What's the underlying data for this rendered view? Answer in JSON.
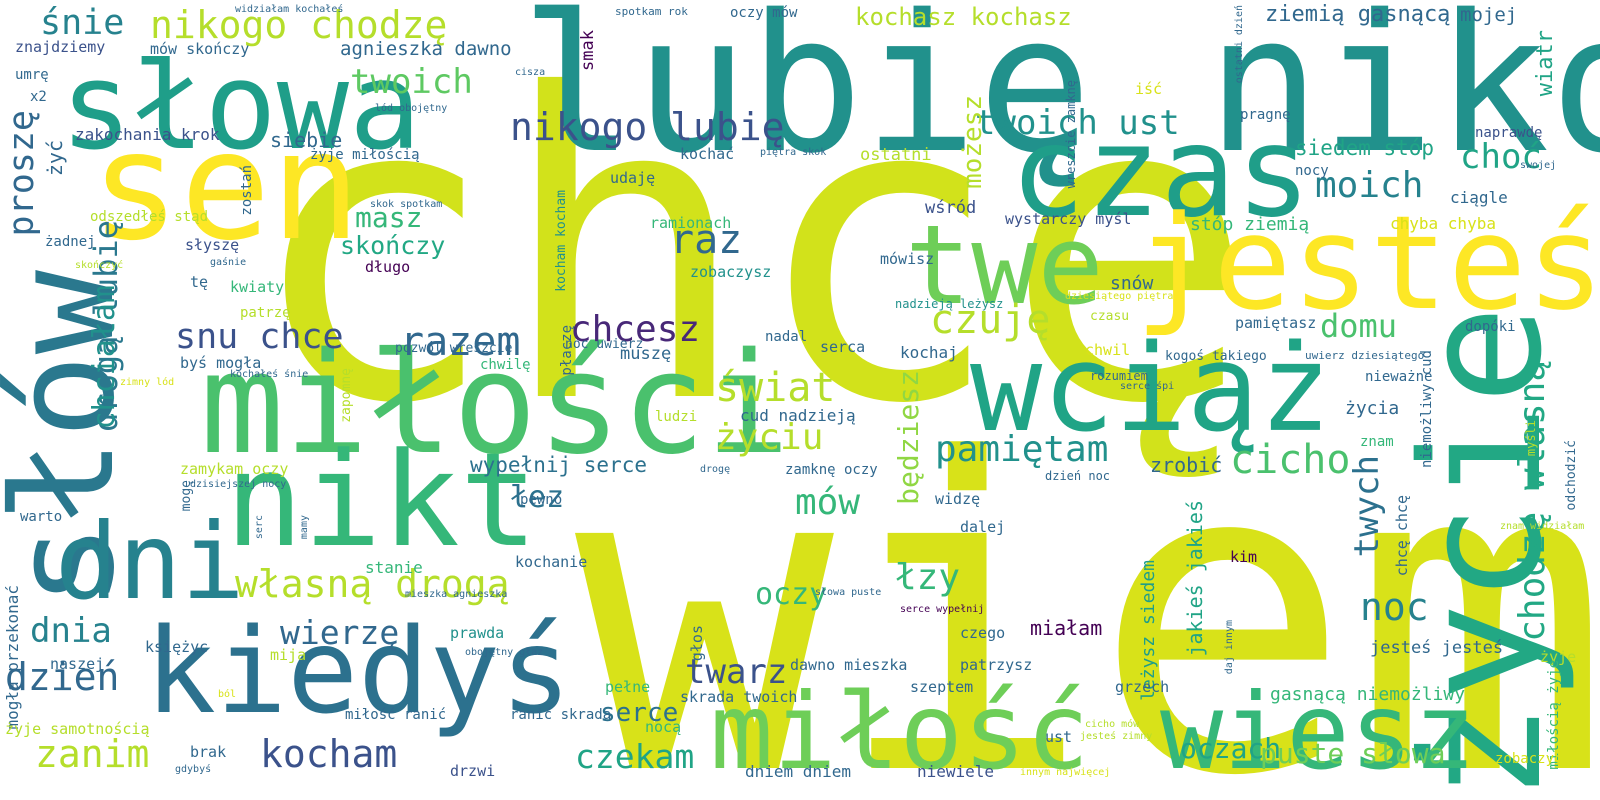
{
  "cloud": {
    "palette": [
      "#440154",
      "#482878",
      "#3e4989",
      "#31688e",
      "#26828e",
      "#1f9e89",
      "#35b779",
      "#6ece58",
      "#b5de2b",
      "#fde725"
    ],
    "words": [
      {
        "text": "chcę",
        "color": "#d2e21b"
      },
      {
        "text": "wiem",
        "color": "#d8e219"
      },
      {
        "text": "lubię nikogo",
        "color": "#21918c"
      },
      {
        "text": "słowa",
        "color": "#1f9e89"
      },
      {
        "text": "sen",
        "color": "#fde725"
      },
      {
        "text": "czas",
        "color": "#1f9e89"
      },
      {
        "text": "jesteś",
        "color": "#fde725"
      },
      {
        "text": "twe",
        "color": "#6ece58"
      },
      {
        "text": "miłości",
        "color": "#4ac16d"
      },
      {
        "text": "wciąż",
        "color": "#20a486"
      },
      {
        "text": "życie",
        "color": "#22a884"
      },
      {
        "text": "słów",
        "color": "#2a788e"
      },
      {
        "text": "nikt",
        "color": "#35b779"
      },
      {
        "text": "dni",
        "color": "#26828e"
      },
      {
        "text": "kiedyś",
        "color": "#2c718e"
      },
      {
        "text": "miłość",
        "color": "#6ece58"
      },
      {
        "text": "wiesz",
        "color": "#35b779"
      },
      {
        "text": "śnie",
        "color": "#26828e"
      },
      {
        "text": "nikogo chodzę",
        "color": "#b5de2b"
      },
      {
        "text": "twoich",
        "color": "#5ec962"
      },
      {
        "text": "nikogo lubię",
        "color": "#3b528b"
      },
      {
        "text": "twoich ust",
        "color": "#21918c"
      },
      {
        "text": "moich",
        "color": "#26828e"
      },
      {
        "text": "choć",
        "color": "#20a486"
      },
      {
        "text": "kochasz kochasz",
        "color": "#b5de2b"
      },
      {
        "text": "ziemią gasnącą",
        "color": "#31688e"
      },
      {
        "text": "mojej",
        "color": "#31688e"
      },
      {
        "text": "siedem stóp",
        "color": "#20a486"
      },
      {
        "text": "proszę",
        "color": "#31688e"
      },
      {
        "text": "drogą lubię",
        "color": "#2a788e"
      },
      {
        "text": "chciałam",
        "color": "#21918c"
      },
      {
        "text": "masz",
        "color": "#35b779"
      },
      {
        "text": "skończy",
        "color": "#22a884"
      },
      {
        "text": "raz",
        "color": "#31688e"
      },
      {
        "text": "możesz",
        "color": "#b5de2b"
      },
      {
        "text": "czuję",
        "color": "#b5de2b"
      },
      {
        "text": "snu chce",
        "color": "#3b528b"
      },
      {
        "text": "razem",
        "color": "#31688e"
      },
      {
        "text": "chcesz",
        "color": "#482878"
      },
      {
        "text": "domu",
        "color": "#4ac16d"
      },
      {
        "text": "świat",
        "color": "#b5de2b"
      },
      {
        "text": "pamiętam",
        "color": "#21918c"
      },
      {
        "text": "cicho",
        "color": "#4ac16d"
      },
      {
        "text": "życiu",
        "color": "#b5de2b"
      },
      {
        "text": "będziesz",
        "color": "#90d743"
      },
      {
        "text": "chodzę własną",
        "color": "#22a884"
      },
      {
        "text": "noc",
        "color": "#26828e"
      },
      {
        "text": "twych",
        "color": "#2c718e"
      },
      {
        "text": "własną drogą",
        "color": "#b5de2b"
      },
      {
        "text": "dnia",
        "color": "#26828e"
      },
      {
        "text": "dzień",
        "color": "#31688e"
      },
      {
        "text": "łez",
        "color": "#2c718e"
      },
      {
        "text": "mów",
        "color": "#35b779"
      },
      {
        "text": "oczy",
        "color": "#35b779"
      },
      {
        "text": "łzy",
        "color": "#35b779"
      },
      {
        "text": "wierzę",
        "color": "#31688e"
      },
      {
        "text": "twarz",
        "color": "#3b528b"
      },
      {
        "text": "kocham",
        "color": "#3b528b"
      },
      {
        "text": "zanim",
        "color": "#b5de2b"
      },
      {
        "text": "czekam",
        "color": "#20a486"
      },
      {
        "text": "serce",
        "color": "#2c718e"
      },
      {
        "text": "oczach",
        "color": "#20a486"
      },
      {
        "text": "puste słowa",
        "color": "#6ece58"
      },
      {
        "text": "miałam",
        "color": "#440154"
      },
      {
        "text": "wypełnij serce",
        "color": "#2c718e"
      },
      {
        "text": "zrobić",
        "color": "#31688e"
      },
      {
        "text": "leżysz siedem",
        "color": "#1f9e89"
      },
      {
        "text": "jakieś jakieś",
        "color": "#20a486"
      },
      {
        "text": "gasnącą niemożliwy",
        "color": "#35b779"
      },
      {
        "text": "jesteś jesteś",
        "color": "#31688e"
      },
      {
        "text": "agnieszka dawno",
        "color": "#31688e"
      },
      {
        "text": "znajdziemy",
        "color": "#3b528b"
      },
      {
        "text": "mów skończy",
        "color": "#31688e"
      },
      {
        "text": "zakochania krok",
        "color": "#3b528b"
      },
      {
        "text": "siebie",
        "color": "#31688e"
      },
      {
        "text": "żyje miłością",
        "color": "#31688e"
      },
      {
        "text": "kochać",
        "color": "#31688e"
      },
      {
        "text": "udaję",
        "color": "#31688e"
      },
      {
        "text": "ostatni",
        "color": "#b5de2b"
      },
      {
        "text": "wśród",
        "color": "#3b528b"
      },
      {
        "text": "wystarczy myśl",
        "color": "#3b528b"
      },
      {
        "text": "stóp ziemią",
        "color": "#35b779"
      },
      {
        "text": "chyba chyba",
        "color": "#d8e219"
      },
      {
        "text": "ciągle",
        "color": "#31688e"
      },
      {
        "text": "naprawdę",
        "color": "#3b528b"
      },
      {
        "text": "pragnę",
        "color": "#31688e"
      },
      {
        "text": "smak",
        "color": "#440154"
      },
      {
        "text": "oczy mów",
        "color": "#31688e"
      },
      {
        "text": "spotkam rok",
        "color": "#31688e"
      },
      {
        "text": "cisza",
        "color": "#31688e"
      },
      {
        "text": "lód obojętny",
        "color": "#31688e"
      },
      {
        "text": "widziałam kochałeś",
        "color": "#31688e"
      },
      {
        "text": "umrę",
        "color": "#31688e"
      },
      {
        "text": "x2",
        "color": "#31688e"
      },
      {
        "text": "iść",
        "color": "#d8e219"
      },
      {
        "text": "nocy",
        "color": "#31688e"
      },
      {
        "text": "swojej",
        "color": "#31688e"
      },
      {
        "text": "wiatr",
        "color": "#20a486"
      },
      {
        "text": "ostatni dzień",
        "color": "#31688e"
      },
      {
        "text": "wreszcie zamknę",
        "color": "#31688e"
      },
      {
        "text": "piętra skok",
        "color": "#31688e"
      },
      {
        "text": "żyć",
        "color": "#31688e"
      },
      {
        "text": "odszedłeś stąd",
        "color": "#b5de2b"
      },
      {
        "text": "skok spotkam",
        "color": "#31688e"
      },
      {
        "text": "żadnej",
        "color": "#31688e"
      },
      {
        "text": "słyszę",
        "color": "#3b528b"
      },
      {
        "text": "gaśnie",
        "color": "#31688e"
      },
      {
        "text": "skończyć",
        "color": "#b5de2b"
      },
      {
        "text": "zostań",
        "color": "#31688e"
      },
      {
        "text": "kocham kocham",
        "color": "#21918c"
      },
      {
        "text": "ramionach",
        "color": "#35b779"
      },
      {
        "text": "zobaczysz",
        "color": "#21918c"
      },
      {
        "text": "płaczę",
        "color": "#31688e"
      },
      {
        "text": "mówisz",
        "color": "#31688e"
      },
      {
        "text": "tę",
        "color": "#31688e"
      },
      {
        "text": "kwiaty",
        "color": "#35b779"
      },
      {
        "text": "długo",
        "color": "#440154"
      },
      {
        "text": "snów",
        "color": "#31688e"
      },
      {
        "text": "nadzieją leżysz",
        "color": "#21918c"
      },
      {
        "text": "dziesiątego piętra",
        "color": "#d8e219"
      },
      {
        "text": "czasu",
        "color": "#b5de2b"
      },
      {
        "text": "patrzę",
        "color": "#b5de2b"
      },
      {
        "text": "pamiętasz",
        "color": "#31688e"
      },
      {
        "text": "dopóki",
        "color": "#31688e"
      },
      {
        "text": "kochałeś śnie",
        "color": "#31688e"
      },
      {
        "text": "pozwól wreszcie",
        "color": "#31688e"
      },
      {
        "text": "kochaj",
        "color": "#31688e"
      },
      {
        "text": "chwil",
        "color": "#d8e219"
      },
      {
        "text": "kogoś takiego",
        "color": "#31688e"
      },
      {
        "text": "uwierz dziesiątego",
        "color": "#31688e"
      },
      {
        "text": "byś mogła",
        "color": "#31688e"
      },
      {
        "text": "muszę",
        "color": "#31688e"
      },
      {
        "text": "nadal",
        "color": "#31688e"
      },
      {
        "text": "serca",
        "color": "#31688e"
      },
      {
        "text": "rozumiem",
        "color": "#31688e"
      },
      {
        "text": "zimny lód",
        "color": "#d8e219"
      },
      {
        "text": "zapomnę",
        "color": "#b5de2b"
      },
      {
        "text": "chwilę",
        "color": "#35b779"
      },
      {
        "text": "noc uwierz",
        "color": "#31688e"
      },
      {
        "text": "serce śpi",
        "color": "#31688e"
      },
      {
        "text": "nieważne",
        "color": "#31688e"
      },
      {
        "text": "życia",
        "color": "#31688e"
      },
      {
        "text": "niemożliwy cud",
        "color": "#31688e"
      },
      {
        "text": "ludzi",
        "color": "#b5de2b"
      },
      {
        "text": "cud nadzieją",
        "color": "#31688e"
      },
      {
        "text": "zamykam oczy",
        "color": "#b5de2b"
      },
      {
        "text": "zamknę oczy",
        "color": "#31688e"
      },
      {
        "text": "znam",
        "color": "#35b779"
      },
      {
        "text": "myśli",
        "color": "#b5de2b"
      },
      {
        "text": "dzisiejszej nocy",
        "color": "#31688e"
      },
      {
        "text": "drogę",
        "color": "#31688e"
      },
      {
        "text": "dzień noc",
        "color": "#31688e"
      },
      {
        "text": "odchodzić",
        "color": "#31688e"
      },
      {
        "text": "mogę",
        "color": "#31688e"
      },
      {
        "text": "pewno",
        "color": "#31688e"
      },
      {
        "text": "widzę",
        "color": "#31688e"
      },
      {
        "text": "chcę chcę",
        "color": "#31688e"
      },
      {
        "text": "warto",
        "color": "#31688e"
      },
      {
        "text": "serc",
        "color": "#31688e"
      },
      {
        "text": "mamy",
        "color": "#31688e"
      },
      {
        "text": "dalej",
        "color": "#31688e"
      },
      {
        "text": "znam widziałam",
        "color": "#b5de2b"
      },
      {
        "text": "kim",
        "color": "#440154"
      },
      {
        "text": "stanie",
        "color": "#35b779"
      },
      {
        "text": "kochanie",
        "color": "#31688e"
      },
      {
        "text": "mogła przekonać",
        "color": "#31688e"
      },
      {
        "text": "słowa puste",
        "color": "#31688e"
      },
      {
        "text": "mieszka agnieszka",
        "color": "#31688e"
      },
      {
        "text": "serce wypełnij",
        "color": "#440154"
      },
      {
        "text": "księżyc",
        "color": "#31688e"
      },
      {
        "text": "prawda",
        "color": "#21918c"
      },
      {
        "text": "głos",
        "color": "#31688e"
      },
      {
        "text": "czego",
        "color": "#31688e"
      },
      {
        "text": "daj innym",
        "color": "#31688e"
      },
      {
        "text": "naszej",
        "color": "#31688e"
      },
      {
        "text": "mija",
        "color": "#b5de2b"
      },
      {
        "text": "obojętny głaz",
        "color": "#31688e"
      },
      {
        "text": "dawno mieszka",
        "color": "#31688e"
      },
      {
        "text": "patrzysz",
        "color": "#31688e"
      },
      {
        "text": "żyje",
        "color": "#b5de2b"
      },
      {
        "text": "miłością żyje",
        "color": "#35b779"
      },
      {
        "text": "ból",
        "color": "#d8e219"
      },
      {
        "text": "pełne",
        "color": "#35b779"
      },
      {
        "text": "skrada twoich",
        "color": "#31688e"
      },
      {
        "text": "szeptem",
        "color": "#31688e"
      },
      {
        "text": "grzech",
        "color": "#31688e"
      },
      {
        "text": "żyje samotnością",
        "color": "#b5de2b"
      },
      {
        "text": "miłość ranić",
        "color": "#31688e"
      },
      {
        "text": "ranić skrada",
        "color": "#31688e"
      },
      {
        "text": "nocą",
        "color": "#35b779"
      },
      {
        "text": "cicho mów",
        "color": "#b5de2b"
      },
      {
        "text": "jesteś zimny",
        "color": "#b5de2b"
      },
      {
        "text": "ust",
        "color": "#31688e"
      },
      {
        "text": "brak",
        "color": "#31688e"
      },
      {
        "text": "gdybyś",
        "color": "#31688e"
      },
      {
        "text": "drzwi",
        "color": "#3b528b"
      },
      {
        "text": "dniem dniem",
        "color": "#31688e"
      },
      {
        "text": "niewiele",
        "color": "#3b528b"
      },
      {
        "text": "innym najwięcej",
        "color": "#d8e219"
      },
      {
        "text": "zobaczyć",
        "color": "#d8e219"
      }
    ]
  }
}
